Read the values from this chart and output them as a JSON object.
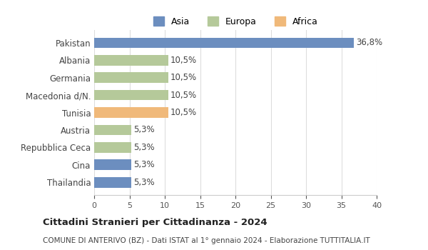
{
  "countries": [
    "Thailandia",
    "Cina",
    "Repubblica Ceca",
    "Austria",
    "Tunisia",
    "Macedonia d/N.",
    "Germania",
    "Albania",
    "Pakistan"
  ],
  "values": [
    5.3,
    5.3,
    5.3,
    5.3,
    10.5,
    10.5,
    10.5,
    10.5,
    36.8
  ],
  "labels": [
    "5,3%",
    "5,3%",
    "5,3%",
    "5,3%",
    "10,5%",
    "10,5%",
    "10,5%",
    "10,5%",
    "36,8%"
  ],
  "colors": [
    "#6c8ebf",
    "#6c8ebf",
    "#b5c99a",
    "#b5c99a",
    "#f0b97a",
    "#b5c99a",
    "#b5c99a",
    "#b5c99a",
    "#6c8ebf"
  ],
  "legend_labels": [
    "Asia",
    "Europa",
    "Africa"
  ],
  "legend_colors": [
    "#6c8ebf",
    "#b5c99a",
    "#f0b97a"
  ],
  "xlim": [
    0,
    40
  ],
  "xticks": [
    0,
    5,
    10,
    15,
    20,
    25,
    30,
    35,
    40
  ],
  "title": "Cittadini Stranieri per Cittadinanza - 2024",
  "subtitle": "COMUNE DI ANTERIVO (BZ) - Dati ISTAT al 1° gennaio 2024 - Elaborazione TUTTITALIA.IT",
  "background_color": "#ffffff",
  "grid_color": "#dddddd"
}
